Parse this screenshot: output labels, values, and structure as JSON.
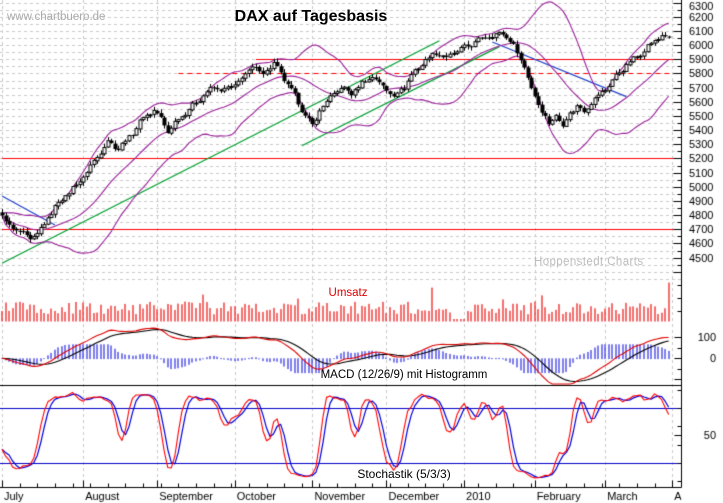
{
  "title": "DAX auf Tagesbasis",
  "watermark": "www.chartbuero.de",
  "credit": "Hoppenstedt Charts",
  "panels": {
    "volume": {
      "label": "Umsatz"
    },
    "macd": {
      "label": "MACD (12/26/9) mit Histogramm",
      "axis_labels": [
        100,
        0
      ]
    },
    "stochastic": {
      "label": "Stochastik (5/3/3)",
      "axis_labels": [
        50
      ],
      "upper_band": 80,
      "lower_band": 20
    }
  },
  "chart_data": {
    "type": "candlestick",
    "instrument": "DAX",
    "timeframe": "daily",
    "title": "DAX auf Tagesbasis",
    "x_axis": {
      "month_labels": [
        "July",
        "August",
        "September",
        "October",
        "November",
        "December",
        "2010",
        "February",
        "March",
        "April"
      ],
      "month_trading_days": [
        23,
        21,
        22,
        22,
        21,
        22,
        20,
        20,
        19
      ],
      "total_days": 190,
      "minor_tick_every_days": 5
    },
    "y_axis": {
      "tick_labels": [
        6300,
        6200,
        6100,
        6000,
        5900,
        5800,
        5700,
        5600,
        5500,
        5400,
        5300,
        5200,
        5100,
        5000,
        4900,
        4800,
        4700,
        4600,
        4500
      ],
      "minor_step": 50,
      "grid": true
    },
    "price_anchors": [
      [
        0,
        4790
      ],
      [
        2,
        4720
      ],
      [
        5,
        4680
      ],
      [
        8,
        4630
      ],
      [
        10,
        4660
      ],
      [
        13,
        4780
      ],
      [
        16,
        4890
      ],
      [
        19,
        4960
      ],
      [
        23,
        5070
      ],
      [
        26,
        5180
      ],
      [
        30,
        5320
      ],
      [
        33,
        5270
      ],
      [
        36,
        5350
      ],
      [
        40,
        5490
      ],
      [
        43,
        5540
      ],
      [
        45,
        5480
      ],
      [
        47,
        5390
      ],
      [
        50,
        5480
      ],
      [
        54,
        5570
      ],
      [
        57,
        5650
      ],
      [
        60,
        5700
      ],
      [
        63,
        5680
      ],
      [
        66,
        5720
      ],
      [
        69,
        5790
      ],
      [
        71,
        5850
      ],
      [
        74,
        5800
      ],
      [
        77,
        5870
      ],
      [
        80,
        5760
      ],
      [
        83,
        5640
      ],
      [
        86,
        5500
      ],
      [
        88,
        5430
      ],
      [
        90,
        5540
      ],
      [
        93,
        5630
      ],
      [
        96,
        5700
      ],
      [
        99,
        5660
      ],
      [
        102,
        5730
      ],
      [
        105,
        5780
      ],
      [
        108,
        5710
      ],
      [
        111,
        5640
      ],
      [
        114,
        5710
      ],
      [
        117,
        5820
      ],
      [
        120,
        5890
      ],
      [
        123,
        5950
      ],
      [
        126,
        5910
      ],
      [
        129,
        5960
      ],
      [
        131,
        5980
      ],
      [
        134,
        6020
      ],
      [
        137,
        6060
      ],
      [
        140,
        6070
      ],
      [
        142,
        6085
      ],
      [
        144,
        6030
      ],
      [
        146,
        5950
      ],
      [
        148,
        5850
      ],
      [
        150,
        5690
      ],
      [
        153,
        5540
      ],
      [
        155,
        5440
      ],
      [
        157,
        5510
      ],
      [
        159,
        5430
      ],
      [
        161,
        5520
      ],
      [
        163,
        5570
      ],
      [
        165,
        5530
      ],
      [
        167,
        5600
      ],
      [
        169,
        5640
      ],
      [
        171,
        5690
      ],
      [
        174,
        5780
      ],
      [
        177,
        5860
      ],
      [
        180,
        5920
      ],
      [
        183,
        5990
      ],
      [
        185,
        6030
      ],
      [
        187,
        6070
      ],
      [
        189,
        6045
      ]
    ],
    "volume": {
      "base": 7,
      "spike_days": [
        57,
        84,
        122,
        142,
        153,
        189
      ],
      "quiet_days": [
        128,
        129,
        130,
        131
      ]
    },
    "overlays": {
      "bollinger": {
        "period": 20,
        "stddev": 2
      },
      "horizontal_lines": [
        {
          "price": 5900,
          "style": "solid",
          "from_day": 72
        },
        {
          "price": 5800,
          "style": "dashed",
          "from_day": 50
        },
        {
          "price": 5200,
          "style": "solid",
          "from_day": 0
        },
        {
          "price": 4700,
          "style": "solid",
          "from_day": 0
        }
      ],
      "trendlines": [
        {
          "from": [
            0,
            4935
          ],
          "to": [
            15,
            4730
          ],
          "color": "#2244cc"
        },
        {
          "from": [
            0,
            4460
          ],
          "to": [
            124,
            6031
          ],
          "color": "#00a030"
        },
        {
          "from": [
            85,
            5290
          ],
          "to": [
            141,
            5990
          ],
          "color": "#00a030"
        },
        {
          "from": [
            139,
            6022
          ],
          "to": [
            177,
            5637
          ],
          "color": "#2244cc"
        }
      ]
    },
    "indicators": {
      "macd": {
        "fast": 12,
        "slow": 26,
        "signal": 9
      },
      "stochastic": {
        "k": 5,
        "k_smooth": 3,
        "d": 3
      }
    },
    "colors": {
      "background": "#ffffff",
      "grid": "#cbcbcb",
      "axis": "#000000",
      "candle_up": "#ffffff",
      "candle_down": "#000000",
      "bollinger": "#992299",
      "resistance": "#ff0000",
      "volume_bars": "#ee1111",
      "macd_line": "#e00000",
      "macd_signal": "#000000",
      "macd_histogram": "#0000dd",
      "stoch_k": "#ff0000",
      "stoch_d": "#0000dd",
      "stoch_bands": "#0000cc"
    }
  }
}
